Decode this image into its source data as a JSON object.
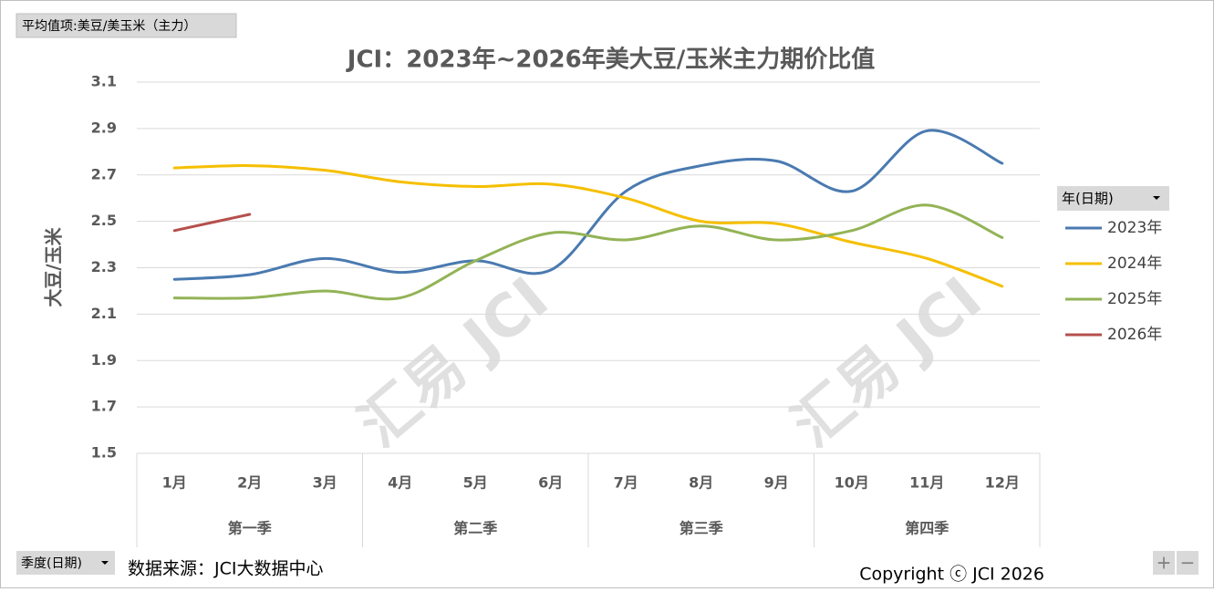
{
  "filter_button": "平均值项:美豆/美玉米（主力）",
  "axis_button": "季度(日期)",
  "source": "数据来源：JCI大数据中心",
  "copyright": "Copyright ⓒ JCI 2026",
  "watermark": "汇易 JCI",
  "buttons": [
    "+",
    "−"
  ],
  "chart_data": {
    "type": "line",
    "title": "JCI：2023年~2026年美大豆/玉米主力期价比值",
    "y_label": "大豆/玉米",
    "categories": [
      "1月",
      "2月",
      "3月",
      "4月",
      "5月",
      "6月",
      "7月",
      "8月",
      "9月",
      "10月",
      "11月",
      "12月"
    ],
    "groups": [
      {
        "name": "第一季",
        "span": 3
      },
      {
        "name": "第二季",
        "span": 3
      },
      {
        "name": "第三季",
        "span": 3
      },
      {
        "name": "第四季",
        "span": 3
      }
    ],
    "legend_title": "年(日期)",
    "legend": "right",
    "grid": true,
    "smooth": true,
    "ylim": [
      1.5,
      3.1
    ],
    "yticks": [
      1.5,
      1.7,
      1.9,
      2.1,
      2.3,
      2.5,
      2.7,
      2.9,
      3.1
    ],
    "series": [
      {
        "name": "2023年",
        "color": "#4a7ab0",
        "values": [
          2.25,
          2.27,
          2.34,
          2.28,
          2.33,
          2.29,
          2.63,
          2.74,
          2.76,
          2.63,
          2.89,
          2.75
        ]
      },
      {
        "name": "2024年",
        "color": "#f5bf00",
        "values": [
          2.73,
          2.74,
          2.72,
          2.67,
          2.65,
          2.66,
          2.6,
          2.5,
          2.49,
          2.41,
          2.34,
          2.22
        ]
      },
      {
        "name": "2025年",
        "color": "#93b356",
        "values": [
          2.17,
          2.17,
          2.2,
          2.17,
          2.33,
          2.45,
          2.42,
          2.48,
          2.42,
          2.46,
          2.57,
          2.43
        ]
      },
      {
        "name": "2026年",
        "color": "#b5504c",
        "values": [
          2.46,
          2.53,
          null,
          null,
          null,
          null,
          null,
          null,
          null,
          null,
          null,
          null
        ]
      }
    ]
  }
}
